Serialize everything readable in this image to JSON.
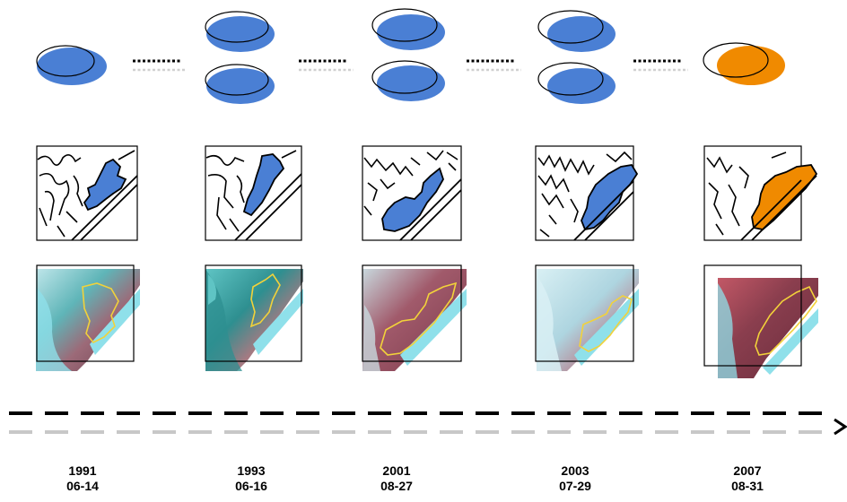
{
  "colors": {
    "blue": "#4a7fd4",
    "orange": "#f08a00",
    "outline": "#000000",
    "dash_gray": "#c8c8c8",
    "yellow": "#f2d23a",
    "land_red": "#9c5a6a",
    "water_cyan": "#8fe0ea",
    "water_teal": "#2e8f90"
  },
  "timepoints": [
    {
      "year": "1991",
      "date": "06-14",
      "ellipses": 1,
      "fill": "blue"
    },
    {
      "year": "1993",
      "date": "06-16",
      "ellipses": 2,
      "fill": "blue"
    },
    {
      "year": "2001",
      "date": "08-27",
      "ellipses": 2,
      "fill": "blue"
    },
    {
      "year": "2003",
      "date": "07-29",
      "ellipses": 2,
      "fill": "blue"
    },
    {
      "year": "2007",
      "date": "08-31",
      "ellipses": 1,
      "fill": "orange"
    }
  ],
  "timeline": {
    "arrow_icon": "arrow-right-icon"
  }
}
